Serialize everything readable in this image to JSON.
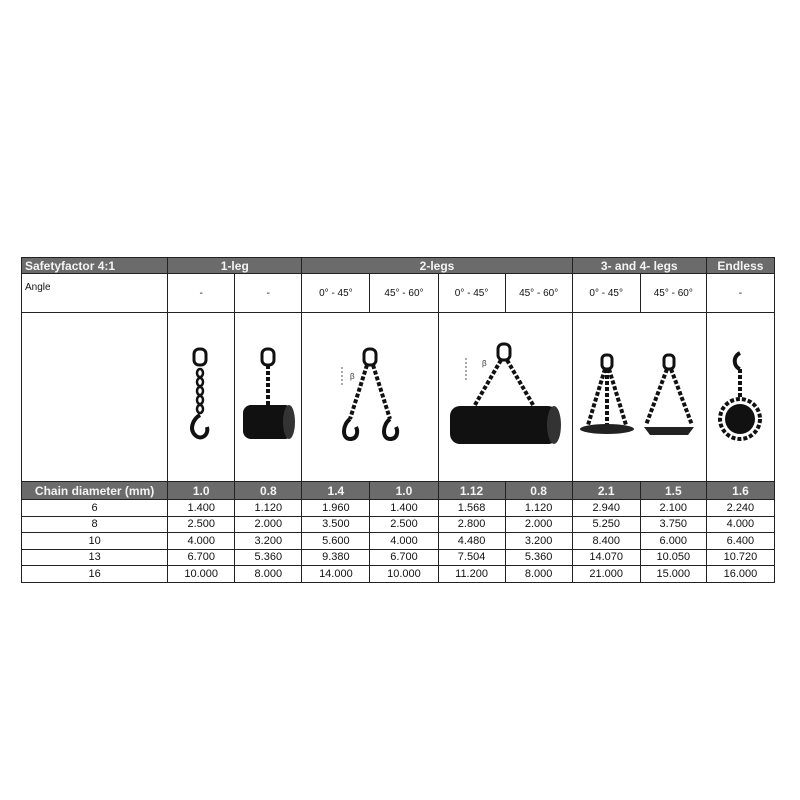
{
  "header": {
    "title": "Safetyfactor 4:1",
    "groups": [
      {
        "label": "1-leg",
        "span": 2
      },
      {
        "label": "2-legs",
        "span": 4
      },
      {
        "label": "3- and 4- legs",
        "span": 2
      },
      {
        "label": "Endless",
        "span": 1
      }
    ]
  },
  "angle": {
    "label": "Angle",
    "values": [
      "-",
      "-",
      "0° - 45°",
      "45° - 60°",
      "0° - 45°",
      "45° - 60°",
      "0° - 45°",
      "45° - 60°",
      "-"
    ]
  },
  "images": [
    "single-leg-hook-icon",
    "single-leg-choke-pipe-icon",
    "two-leg-hooks-icon",
    "two-leg-pipe-icon",
    "three-four-leg-platform-icon",
    "endless-chain-icon"
  ],
  "factor": {
    "label": "Chain diameter (mm)",
    "values": [
      "1.0",
      "0.8",
      "1.4",
      "1.0",
      "1.12",
      "0.8",
      "2.1",
      "1.5",
      "1.6"
    ]
  },
  "rows": [
    {
      "d": "6",
      "v": [
        "1.400",
        "1.120",
        "1.960",
        "1.400",
        "1.568",
        "1.120",
        "2.940",
        "2.100",
        "2.240"
      ]
    },
    {
      "d": "8",
      "v": [
        "2.500",
        "2.000",
        "3.500",
        "2.500",
        "2.800",
        "2.000",
        "5.250",
        "3.750",
        "4.000"
      ]
    },
    {
      "d": "10",
      "v": [
        "4.000",
        "3.200",
        "5.600",
        "4.000",
        "4.480",
        "3.200",
        "8.400",
        "6.000",
        "6.400"
      ]
    },
    {
      "d": "13",
      "v": [
        "6.700",
        "5.360",
        "9.380",
        "6.700",
        "7.504",
        "5.360",
        "14.070",
        "10.050",
        "10.720"
      ]
    },
    {
      "d": "16",
      "v": [
        "10.000",
        "8.000",
        "14.000",
        "10.000",
        "11.200",
        "8.000",
        "21.000",
        "15.000",
        "16.000"
      ]
    }
  ],
  "angle_symbol": "β",
  "colors": {
    "header_bg": "#6b6b6b",
    "header_text": "#f4f4f4",
    "chain": "#111111"
  }
}
